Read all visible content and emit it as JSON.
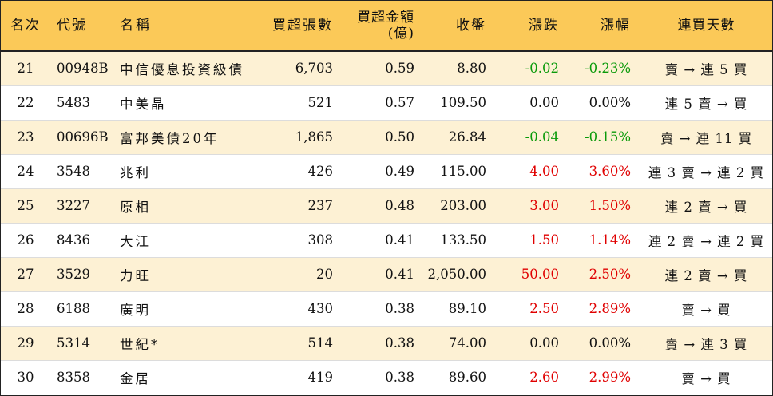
{
  "headers": {
    "rank": "名次",
    "code": "代號",
    "name": "名稱",
    "net_buy_lots": "買超張數",
    "net_buy_amount": "買超金額",
    "net_buy_amount_unit": "(億)",
    "close": "收盤",
    "change": "漲跌",
    "change_pct": "漲幅",
    "buy_days": "連買天數"
  },
  "colors": {
    "header_bg": "#fbc958",
    "stripe_bg": "#fdf1d4",
    "up": "#e00000",
    "down": "#0a9a0a"
  },
  "rows": [
    {
      "rank": "21",
      "code": "00948B",
      "name": "中信優息投資級債",
      "lots": "6,703",
      "amount": "0.59",
      "close": "8.80",
      "change": "-0.02",
      "pct": "-0.23%",
      "days": "賣 → 連 5 買",
      "dir": "down"
    },
    {
      "rank": "22",
      "code": "5483",
      "name": "中美晶",
      "lots": "521",
      "amount": "0.57",
      "close": "109.50",
      "change": "0.00",
      "pct": "0.00%",
      "days": "連 5 賣 → 買",
      "dir": "flat"
    },
    {
      "rank": "23",
      "code": "00696B",
      "name": "富邦美債20年",
      "lots": "1,865",
      "amount": "0.50",
      "close": "26.84",
      "change": "-0.04",
      "pct": "-0.15%",
      "days": "賣 → 連 11 買",
      "dir": "down"
    },
    {
      "rank": "24",
      "code": "3548",
      "name": "兆利",
      "lots": "426",
      "amount": "0.49",
      "close": "115.00",
      "change": "4.00",
      "pct": "3.60%",
      "days": "連 3 賣 → 連 2 買",
      "dir": "up"
    },
    {
      "rank": "25",
      "code": "3227",
      "name": "原相",
      "lots": "237",
      "amount": "0.48",
      "close": "203.00",
      "change": "3.00",
      "pct": "1.50%",
      "days": "連 2 賣 → 買",
      "dir": "up"
    },
    {
      "rank": "26",
      "code": "8436",
      "name": "大江",
      "lots": "308",
      "amount": "0.41",
      "close": "133.50",
      "change": "1.50",
      "pct": "1.14%",
      "days": "連 2 賣 → 連 2 買",
      "dir": "up"
    },
    {
      "rank": "27",
      "code": "3529",
      "name": "力旺",
      "lots": "20",
      "amount": "0.41",
      "close": "2,050.00",
      "change": "50.00",
      "pct": "2.50%",
      "days": "連 2 賣 → 買",
      "dir": "up"
    },
    {
      "rank": "28",
      "code": "6188",
      "name": "廣明",
      "lots": "430",
      "amount": "0.38",
      "close": "89.10",
      "change": "2.50",
      "pct": "2.89%",
      "days": "賣 → 買",
      "dir": "up"
    },
    {
      "rank": "29",
      "code": "5314",
      "name": "世紀*",
      "lots": "514",
      "amount": "0.38",
      "close": "74.00",
      "change": "0.00",
      "pct": "0.00%",
      "days": "賣 → 連 3 買",
      "dir": "flat"
    },
    {
      "rank": "30",
      "code": "8358",
      "name": "金居",
      "lots": "419",
      "amount": "0.38",
      "close": "89.60",
      "change": "2.60",
      "pct": "2.99%",
      "days": "賣 → 買",
      "dir": "up"
    }
  ]
}
